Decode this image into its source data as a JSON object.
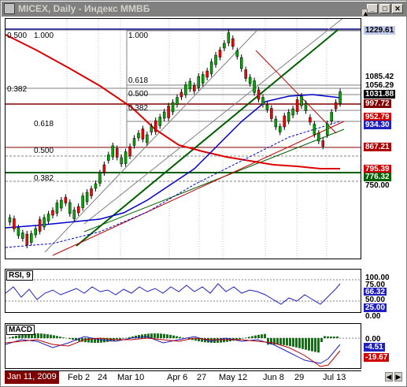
{
  "window": {
    "title": "MICEX, Daily - Индекс ММВБ",
    "buttons": {
      "minimize": "_",
      "maximize": "□",
      "close": "✕"
    }
  },
  "price_axis": {
    "labels": [
      {
        "text": "1229.61",
        "bg": "#c0c8e8",
        "fg": "#000000"
      },
      {
        "text": "1085.42",
        "bg": "#ffffff",
        "fg": "#000000"
      },
      {
        "text": "1056.29",
        "bg": "#ffffff",
        "fg": "#000000"
      },
      {
        "text": "1031.88",
        "bg": "#000000",
        "fg": "#ffffff"
      },
      {
        "text": "997.72",
        "bg": "#800000",
        "fg": "#ffffff"
      },
      {
        "text": "952.79",
        "bg": "#d00000",
        "fg": "#ffffff"
      },
      {
        "text": "934.30",
        "bg": "#2020c0",
        "fg": "#ffffff"
      },
      {
        "text": "867.21",
        "bg": "#b00000",
        "fg": "#ffffff"
      },
      {
        "text": "795.39",
        "bg": "#d00000",
        "fg": "#ffffff"
      },
      {
        "text": "776.32",
        "bg": "#006000",
        "fg": "#ffffff"
      },
      {
        "text": "750.00",
        "bg": "#ffffff",
        "fg": "#000000"
      }
    ]
  },
  "fibonacci": {
    "left_set": [
      "0.500",
      "1.000",
      "0.382",
      "0.618",
      "0.500",
      "0.382"
    ],
    "right_set": [
      "1.000",
      "0.618",
      "0.500",
      "0.382"
    ]
  },
  "rsi": {
    "label": "RSI, 9",
    "axis": [
      {
        "text": "100.00",
        "bg": "#ffffff",
        "fg": "#000000"
      },
      {
        "text": "75.00",
        "bg": "#ffffff",
        "fg": "#000000"
      },
      {
        "text": "66.32",
        "bg": "#2020c0",
        "fg": "#ffffff"
      },
      {
        "text": "50.00",
        "bg": "#ffffff",
        "fg": "#000000"
      },
      {
        "text": "25.00",
        "bg": "#2020c0",
        "fg": "#ffffff"
      },
      {
        "text": "0.00",
        "bg": "#ffffff",
        "fg": "#000000"
      }
    ]
  },
  "macd": {
    "label": "MACD",
    "axis": [
      {
        "text": "0.00",
        "bg": "#ffffff",
        "fg": "#000000"
      },
      {
        "text": "-4.51",
        "bg": "#2020c0",
        "fg": "#ffffff"
      },
      {
        "text": "-19.67",
        "bg": "#d00000",
        "fg": "#ffffff"
      }
    ]
  },
  "time_axis": {
    "first": "Jan 11, 2009",
    "labels": [
      "Feb 2",
      "24",
      "Mar 10",
      "Apr 6",
      "27",
      "May 12",
      "Jun 8",
      "29",
      "Jul 13"
    ]
  },
  "colors": {
    "red_ma": "#dd0000",
    "blue_ma": "#0000cc",
    "green_line": "#006000",
    "candle_up": "#00aa00",
    "candle_down": "#ff0000"
  }
}
